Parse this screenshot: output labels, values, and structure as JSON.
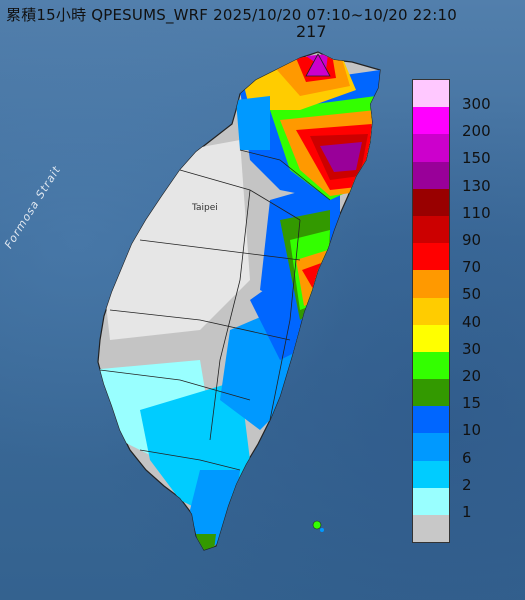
{
  "title": "累積15小時 QPESUMS_WRF 2025/10/20 07:10~10/20 22:10",
  "max_value_label": "217",
  "strait_label": "Formosa Strait",
  "city_label": "Taipei",
  "legend": [
    {
      "label": "300",
      "color": "#ffc8ff"
    },
    {
      "label": "200",
      "color": "#ff00ff"
    },
    {
      "label": "150",
      "color": "#cc00cc"
    },
    {
      "label": "130",
      "color": "#990099"
    },
    {
      "label": "110",
      "color": "#990000"
    },
    {
      "label": "90",
      "color": "#cc0000"
    },
    {
      "label": "70",
      "color": "#ff0000"
    },
    {
      "label": "50",
      "color": "#ff9900"
    },
    {
      "label": "40",
      "color": "#ffcc00"
    },
    {
      "label": "30",
      "color": "#ffff00"
    },
    {
      "label": "20",
      "color": "#33ff00"
    },
    {
      "label": "15",
      "color": "#339900"
    },
    {
      "label": "10",
      "color": "#0066ff"
    },
    {
      "label": "6",
      "color": "#0099ff"
    },
    {
      "label": "2",
      "color": "#00ccff"
    },
    {
      "label": "1",
      "color": "#99ffff"
    },
    {
      "label": "",
      "color": "#c8c8c8"
    }
  ]
}
